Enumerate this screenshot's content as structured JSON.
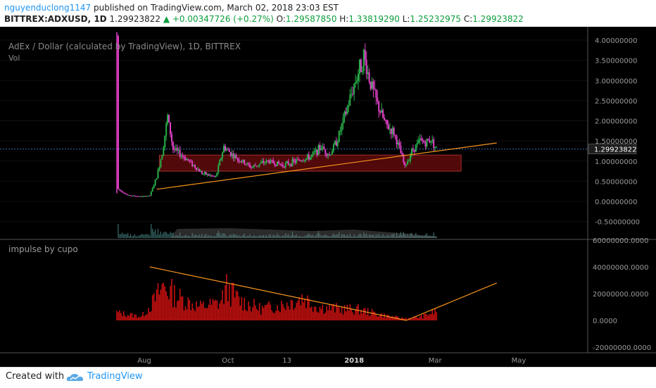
{
  "header": {
    "author": "nguyenduclong1147",
    "published_text": "published on TradingView.com, March 02, 2018 23:03 EST",
    "symbol": "BITTREX:ADXUSD, 1D",
    "last_price": "1.29923822",
    "change": "▲ +0.00347726 (+0.27%)",
    "o_label": "O:",
    "o_value": "1.29587850",
    "h_label": "H:",
    "h_value": "1.33819290",
    "l_label": "L:",
    "l_value": "1.25232975",
    "c_label": "C:",
    "c_value": "1.29923822"
  },
  "main_pane": {
    "title": "AdEx / Dollar (calculated by TradingView), 1D, BITTREX",
    "sub_label": "Vol",
    "price_tag": "1.29923822",
    "y_ticks": [
      "4.00000000",
      "3.50000000",
      "3.00000000",
      "2.50000000",
      "2.00000000",
      "1.50000000",
      "1.00000000",
      "0.50000000",
      "0.00000000",
      "-0.50000000"
    ]
  },
  "indicator_pane": {
    "title": "impulse by cupo",
    "y_ticks": [
      "60000000.0000",
      "40000000.0000",
      "20000000.0000",
      "0.0000",
      "-20000000.0000"
    ]
  },
  "x_axis": {
    "ticks": [
      "Aug",
      "Oct",
      "13",
      "2018",
      "Mar",
      "May"
    ]
  },
  "footer": {
    "created": "Created with",
    "brand": "TradingView"
  },
  "colors": {
    "background": "#000000",
    "candle_up": "#27b04a",
    "candle_down": "#e040c8",
    "trendline": "#f7941d",
    "zone_fill": "#5a0a0a",
    "zone_border": "#a03030",
    "impulse_bar": "#c81010",
    "volume": "#4a8a8a"
  },
  "chart_data": [
    {
      "type": "candlestick",
      "title": "AdEx / Dollar (calculated by TradingView), 1D, BITTREX",
      "ylim": [
        -0.75,
        4.2
      ],
      "x_ticks": [
        "Aug",
        "Oct",
        "13",
        "2018",
        "Mar",
        "May"
      ],
      "close_path": [
        [
          "2017-07-12",
          4.1
        ],
        [
          "2017-07-13",
          0.3
        ],
        [
          "2017-07-20",
          0.15
        ],
        [
          "2017-07-30",
          0.12
        ],
        [
          "2017-08-05",
          0.14
        ],
        [
          "2017-08-10",
          0.6
        ],
        [
          "2017-08-14",
          1.2
        ],
        [
          "2017-08-18",
          2.1
        ],
        [
          "2017-08-22",
          1.3
        ],
        [
          "2017-09-01",
          1.05
        ],
        [
          "2017-09-12",
          0.7
        ],
        [
          "2017-09-22",
          0.6
        ],
        [
          "2017-09-28",
          1.35
        ],
        [
          "2017-10-06",
          1.1
        ],
        [
          "2017-10-18",
          0.85
        ],
        [
          "2017-10-30",
          1.0
        ],
        [
          "2017-11-10",
          0.9
        ],
        [
          "2017-11-20",
          1.0
        ],
        [
          "2017-11-30",
          1.1
        ],
        [
          "2017-12-08",
          1.35
        ],
        [
          "2017-12-14",
          1.15
        ],
        [
          "2017-12-20",
          1.55
        ],
        [
          "2017-12-26",
          2.2
        ],
        [
          "2018-01-01",
          2.9
        ],
        [
          "2018-01-04",
          3.2
        ],
        [
          "2018-01-08",
          3.6
        ],
        [
          "2018-01-12",
          3.05
        ],
        [
          "2018-01-18",
          2.4
        ],
        [
          "2018-01-24",
          1.9
        ],
        [
          "2018-01-30",
          1.7
        ],
        [
          "2018-02-03",
          1.3
        ],
        [
          "2018-02-07",
          0.85
        ],
        [
          "2018-02-12",
          1.25
        ],
        [
          "2018-02-18",
          1.5
        ],
        [
          "2018-02-22",
          1.45
        ],
        [
          "2018-02-26",
          1.55
        ],
        [
          "2018-03-02",
          1.3
        ]
      ],
      "last_close": 1.29923822,
      "annotations": [
        {
          "kind": "trendline",
          "from": [
            "2017-08-10",
            0.3
          ],
          "to": [
            "2018-04-15",
            1.45
          ]
        },
        {
          "kind": "zone",
          "from_date": "2017-08-12",
          "to_date": "2018-03-20",
          "low": 0.75,
          "high": 1.15
        },
        {
          "kind": "price_line",
          "value": 1.29923822
        }
      ]
    },
    {
      "type": "bar",
      "title": "impulse by cupo",
      "ylim": [
        -25000000,
        62000000
      ],
      "bar_envelope": [
        [
          "2017-07-12",
          8000000
        ],
        [
          "2017-07-30",
          4000000
        ],
        [
          "2017-08-08",
          20000000
        ],
        [
          "2017-08-15",
          36000000
        ],
        [
          "2017-08-25",
          24000000
        ],
        [
          "2017-09-10",
          14000000
        ],
        [
          "2017-09-25",
          18000000
        ],
        [
          "2017-09-30",
          33000000
        ],
        [
          "2017-10-10",
          20000000
        ],
        [
          "2017-10-25",
          12000000
        ],
        [
          "2017-11-10",
          16000000
        ],
        [
          "2017-11-25",
          24000000
        ],
        [
          "2017-12-05",
          14000000
        ],
        [
          "2017-12-20",
          12000000
        ],
        [
          "2018-01-05",
          11000000
        ],
        [
          "2018-01-20",
          6000000
        ],
        [
          "2018-02-01",
          3000000
        ],
        [
          "2018-02-08",
          2000000
        ],
        [
          "2018-02-20",
          4000000
        ],
        [
          "2018-03-02",
          10000000
        ]
      ],
      "annotations": [
        {
          "kind": "trendline",
          "from": [
            "2017-08-05",
            40000000
          ],
          "to": [
            "2018-02-08",
            0
          ]
        },
        {
          "kind": "trendline",
          "from": [
            "2018-02-08",
            0
          ],
          "to": [
            "2018-04-15",
            28000000
          ]
        }
      ]
    }
  ]
}
